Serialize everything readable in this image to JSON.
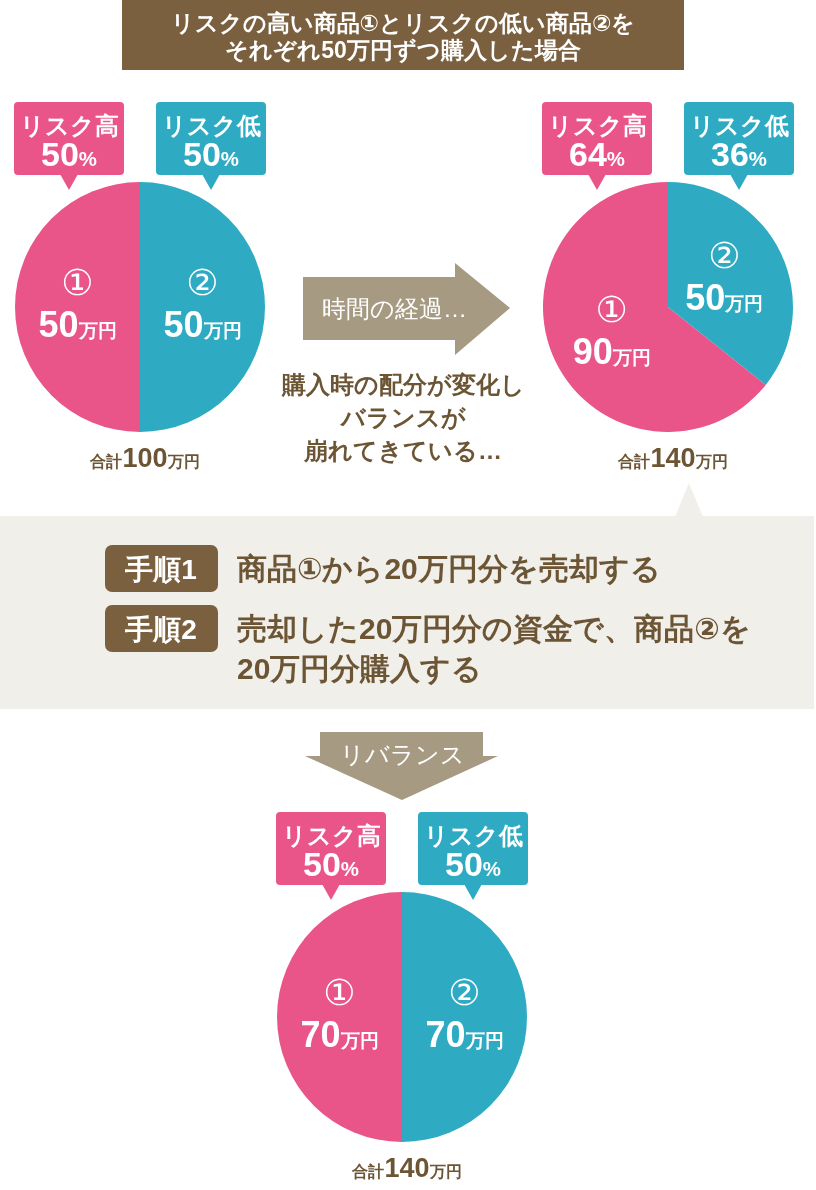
{
  "chart_data": [
    {
      "type": "pie",
      "title": "リスクの高い商品①とリスクの低い商品②をそれぞれ50万円ずつ購入した場合",
      "categories": [
        "①",
        "②"
      ],
      "values": [
        50,
        50
      ],
      "colors": [
        "#e95588",
        "#2eabc2"
      ],
      "value_labels": [
        "50万円",
        "50万円"
      ],
      "annotations": [
        {
          "text": "リスク高\n50%",
          "x": "①"
        },
        {
          "text": "リスク低\n50%",
          "x": "②"
        },
        "合計100万円"
      ]
    },
    {
      "type": "other",
      "annotations": [
        "時間の経過…",
        "購入時の配分が変化し",
        "バランスが",
        "崩れてきている…"
      ]
    },
    {
      "type": "pie",
      "categories": [
        "①",
        "②"
      ],
      "values": [
        90,
        50
      ],
      "colors": [
        "#e95588",
        "#2eabc2"
      ],
      "value_labels": [
        "90万円",
        "50万円"
      ],
      "annotations": [
        {
          "text": "リスク高\n64%",
          "x": "①"
        },
        {
          "text": "リスク低\n36%",
          "x": "②"
        },
        "合計140万円"
      ]
    },
    {
      "type": "other",
      "annotations": [
        "手順1",
        "商品①から20万円分を売却する",
        "手順2",
        "売却した20万円分の資金で、商品②を20万円分購入する",
        "リバランス"
      ]
    },
    {
      "type": "pie",
      "categories": [
        "①",
        "②"
      ],
      "values": [
        70,
        70
      ],
      "colors": [
        "#e95588",
        "#2eabc2"
      ],
      "value_labels": [
        "70万円",
        "70万円"
      ],
      "annotations": [
        {
          "text": "リスク高\n50%",
          "x": "①"
        },
        {
          "text": "リスク低\n50%",
          "x": "②"
        },
        "合計140万円"
      ]
    }
  ]
}
